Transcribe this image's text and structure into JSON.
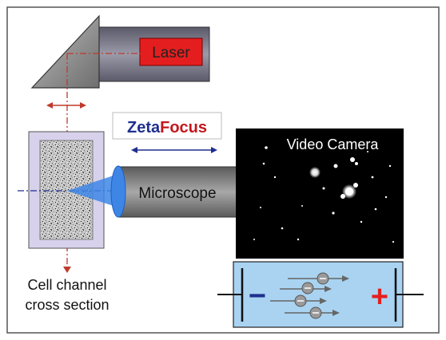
{
  "laser": {
    "label": "Laser"
  },
  "brand": {
    "part1": "Zeta",
    "part2": "Focus"
  },
  "microscope": {
    "label": "Microscope"
  },
  "camera": {
    "label": "Video Camera"
  },
  "cell_channel": {
    "line1": "Cell channel",
    "line2": "cross section"
  },
  "electrophoresis": {
    "minus": "−",
    "plus": "+"
  },
  "colors": {
    "frame": "#555555",
    "laser_red": "#e41e1e",
    "beam": "#c0392b",
    "tube_grey": "#8a8a8a",
    "lilac": "#d7d1ec",
    "lens_blue": "#3d86e6",
    "panel_blue": "#a9d3f1",
    "navy": "#1f2f8f"
  }
}
